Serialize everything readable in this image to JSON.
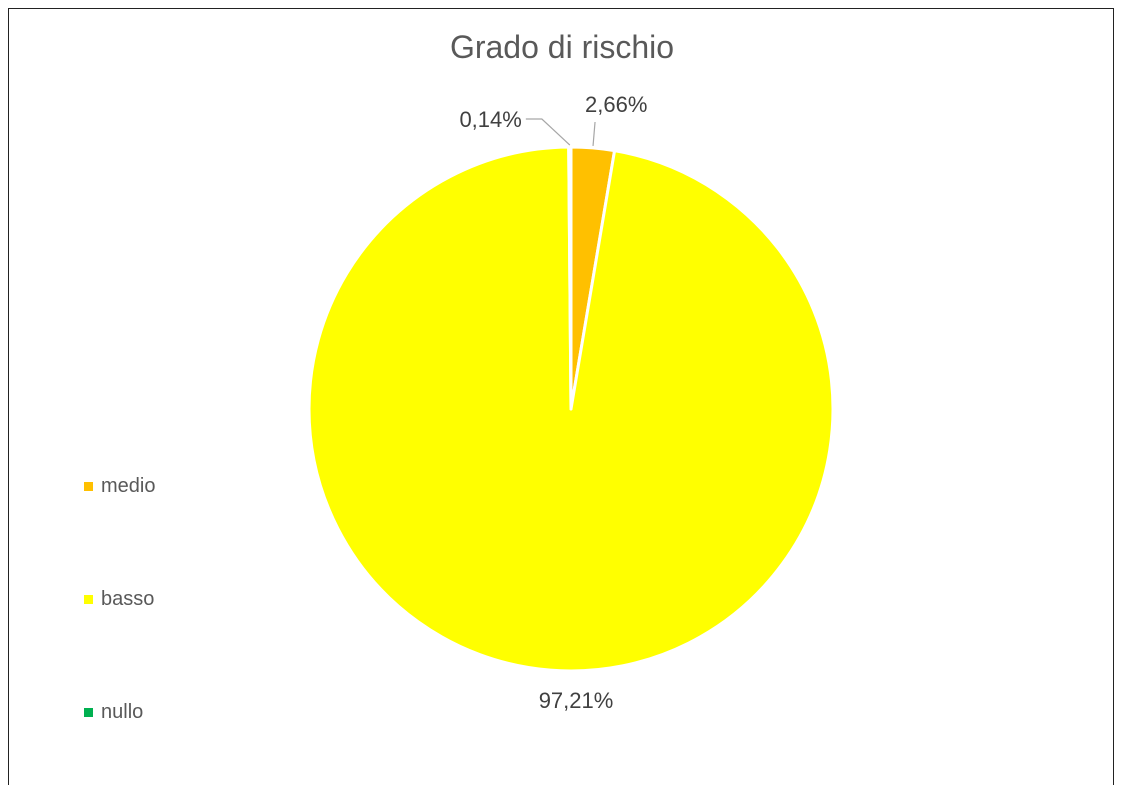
{
  "chart_data": {
    "type": "pie",
    "title": "Grado di rischio",
    "categories": [
      "medio",
      "basso",
      "nullo"
    ],
    "values": [
      2.66,
      97.21,
      0.14
    ],
    "data_labels": [
      "2,66%",
      "97,21%",
      "0,14%"
    ],
    "colors": [
      "#FFC000",
      "#FFFF00",
      "#00B050"
    ],
    "legend_position": "left",
    "start_angle_deg": 0,
    "slice_border_color": "#FFFFFF"
  }
}
